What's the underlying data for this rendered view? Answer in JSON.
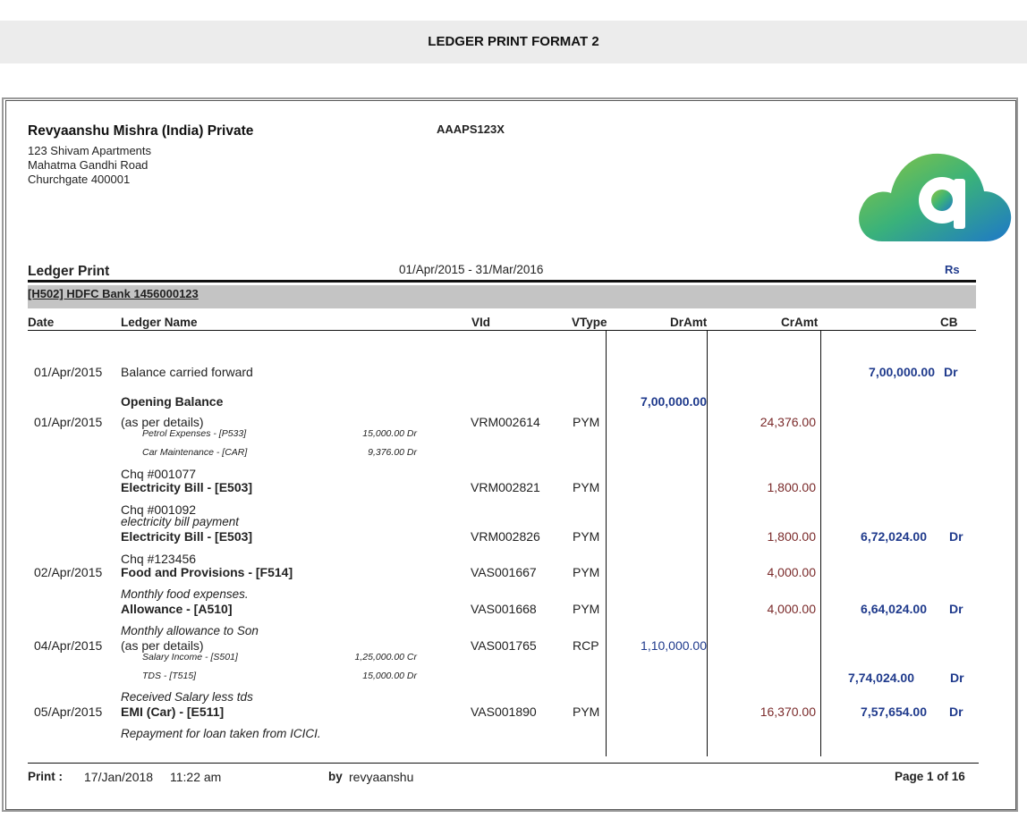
{
  "report_title": "LEDGER PRINT FORMAT 2",
  "company": {
    "name": "Revyaanshu Mishra (India) Private",
    "address": [
      "123 Shivam Apartments",
      "Mahatma Gandhi Road",
      "Churchgate 400001"
    ],
    "pan": "AAAPS123X"
  },
  "ledger": {
    "heading": "Ledger Print",
    "period": "01/Apr/2015 -  31/Mar/2016",
    "currency": "Rs",
    "account": "[H502] HDFC Bank 1456000123"
  },
  "columns": {
    "date": "Date",
    "ledger_name": "Ledger Name",
    "vid": "VId",
    "vtype": "VType",
    "dramt": "DrAmt",
    "cramt": "CrAmt",
    "cb": "CB"
  },
  "rows": {
    "r1": {
      "date": "01/Apr/2015",
      "name": "Balance carried forward",
      "cb": "7,00,000.00",
      "cb_side": "Dr"
    },
    "ob": {
      "name": "Opening Balance",
      "dramt": "7,00,000.00"
    },
    "r2": {
      "date": "01/Apr/2015",
      "name": "(as per details)",
      "vid": "VRM002614",
      "vtype": "PYM",
      "cramt": "24,376.00",
      "sub1_name": "Petrol Expenses - [P533]",
      "sub1_amt": "15,000.00 Dr",
      "sub2_name": "Car Maintenance - [CAR]",
      "sub2_amt": "9,376.00 Dr"
    },
    "r3": {
      "chq": "Chq #001077",
      "name": "Electricity Bill - [E503]",
      "vid": "VRM002821",
      "vtype": "PYM",
      "cramt": "1,800.00"
    },
    "r4": {
      "chq": "Chq #001092",
      "narration": "electricity bill payment",
      "name": "Electricity Bill - [E503]",
      "vid": "VRM002826",
      "vtype": "PYM",
      "cramt": "1,800.00",
      "cb": "6,72,024.00",
      "cb_side": "Dr"
    },
    "r5": {
      "chq": "Chq #123456",
      "date": "02/Apr/2015",
      "name": "Food and Provisions - [F514]",
      "vid": "VAS001667",
      "vtype": "PYM",
      "cramt": "4,000.00"
    },
    "r6": {
      "narration_prev": "Monthly food expenses.",
      "name": "Allowance - [A510]",
      "vid": "VAS001668",
      "vtype": "PYM",
      "cramt": "4,000.00",
      "cb": "6,64,024.00",
      "cb_side": "Dr"
    },
    "r7": {
      "narration_prev": "Monthly allowance to Son",
      "date": "04/Apr/2015",
      "name": "(as per details)",
      "vid": "VAS001765",
      "vtype": "RCP",
      "dramt": "1,10,000.00",
      "sub1_name": "Salary Income - [S501]",
      "sub1_amt": "1,25,000.00 Cr",
      "sub2_name": "TDS - [T515]",
      "sub2_amt": "15,000.00 Dr",
      "cb": "7,74,024.00",
      "cb_side": "Dr"
    },
    "r8": {
      "narration_prev": "Received Salary less tds",
      "date": "05/Apr/2015",
      "name": "EMI (Car) - [E511]",
      "vid": "VAS001890",
      "vtype": "PYM",
      "cramt": "16,370.00",
      "cb": "7,57,654.00",
      "cb_side": "Dr",
      "narration": "Repayment for loan taken from ICICI."
    }
  },
  "footer": {
    "print_label": "Print :",
    "print_date": "17/Jan/2018",
    "print_time": "11:22 am",
    "by_label": "by",
    "user": "revyaanshu",
    "page": "Page 1 of 16"
  },
  "colors": {
    "accent_blue": "#1f3a8c",
    "credit_red": "#7a2a2a",
    "logo_green": "#5dbb46",
    "logo_blue": "#1e88c8"
  }
}
